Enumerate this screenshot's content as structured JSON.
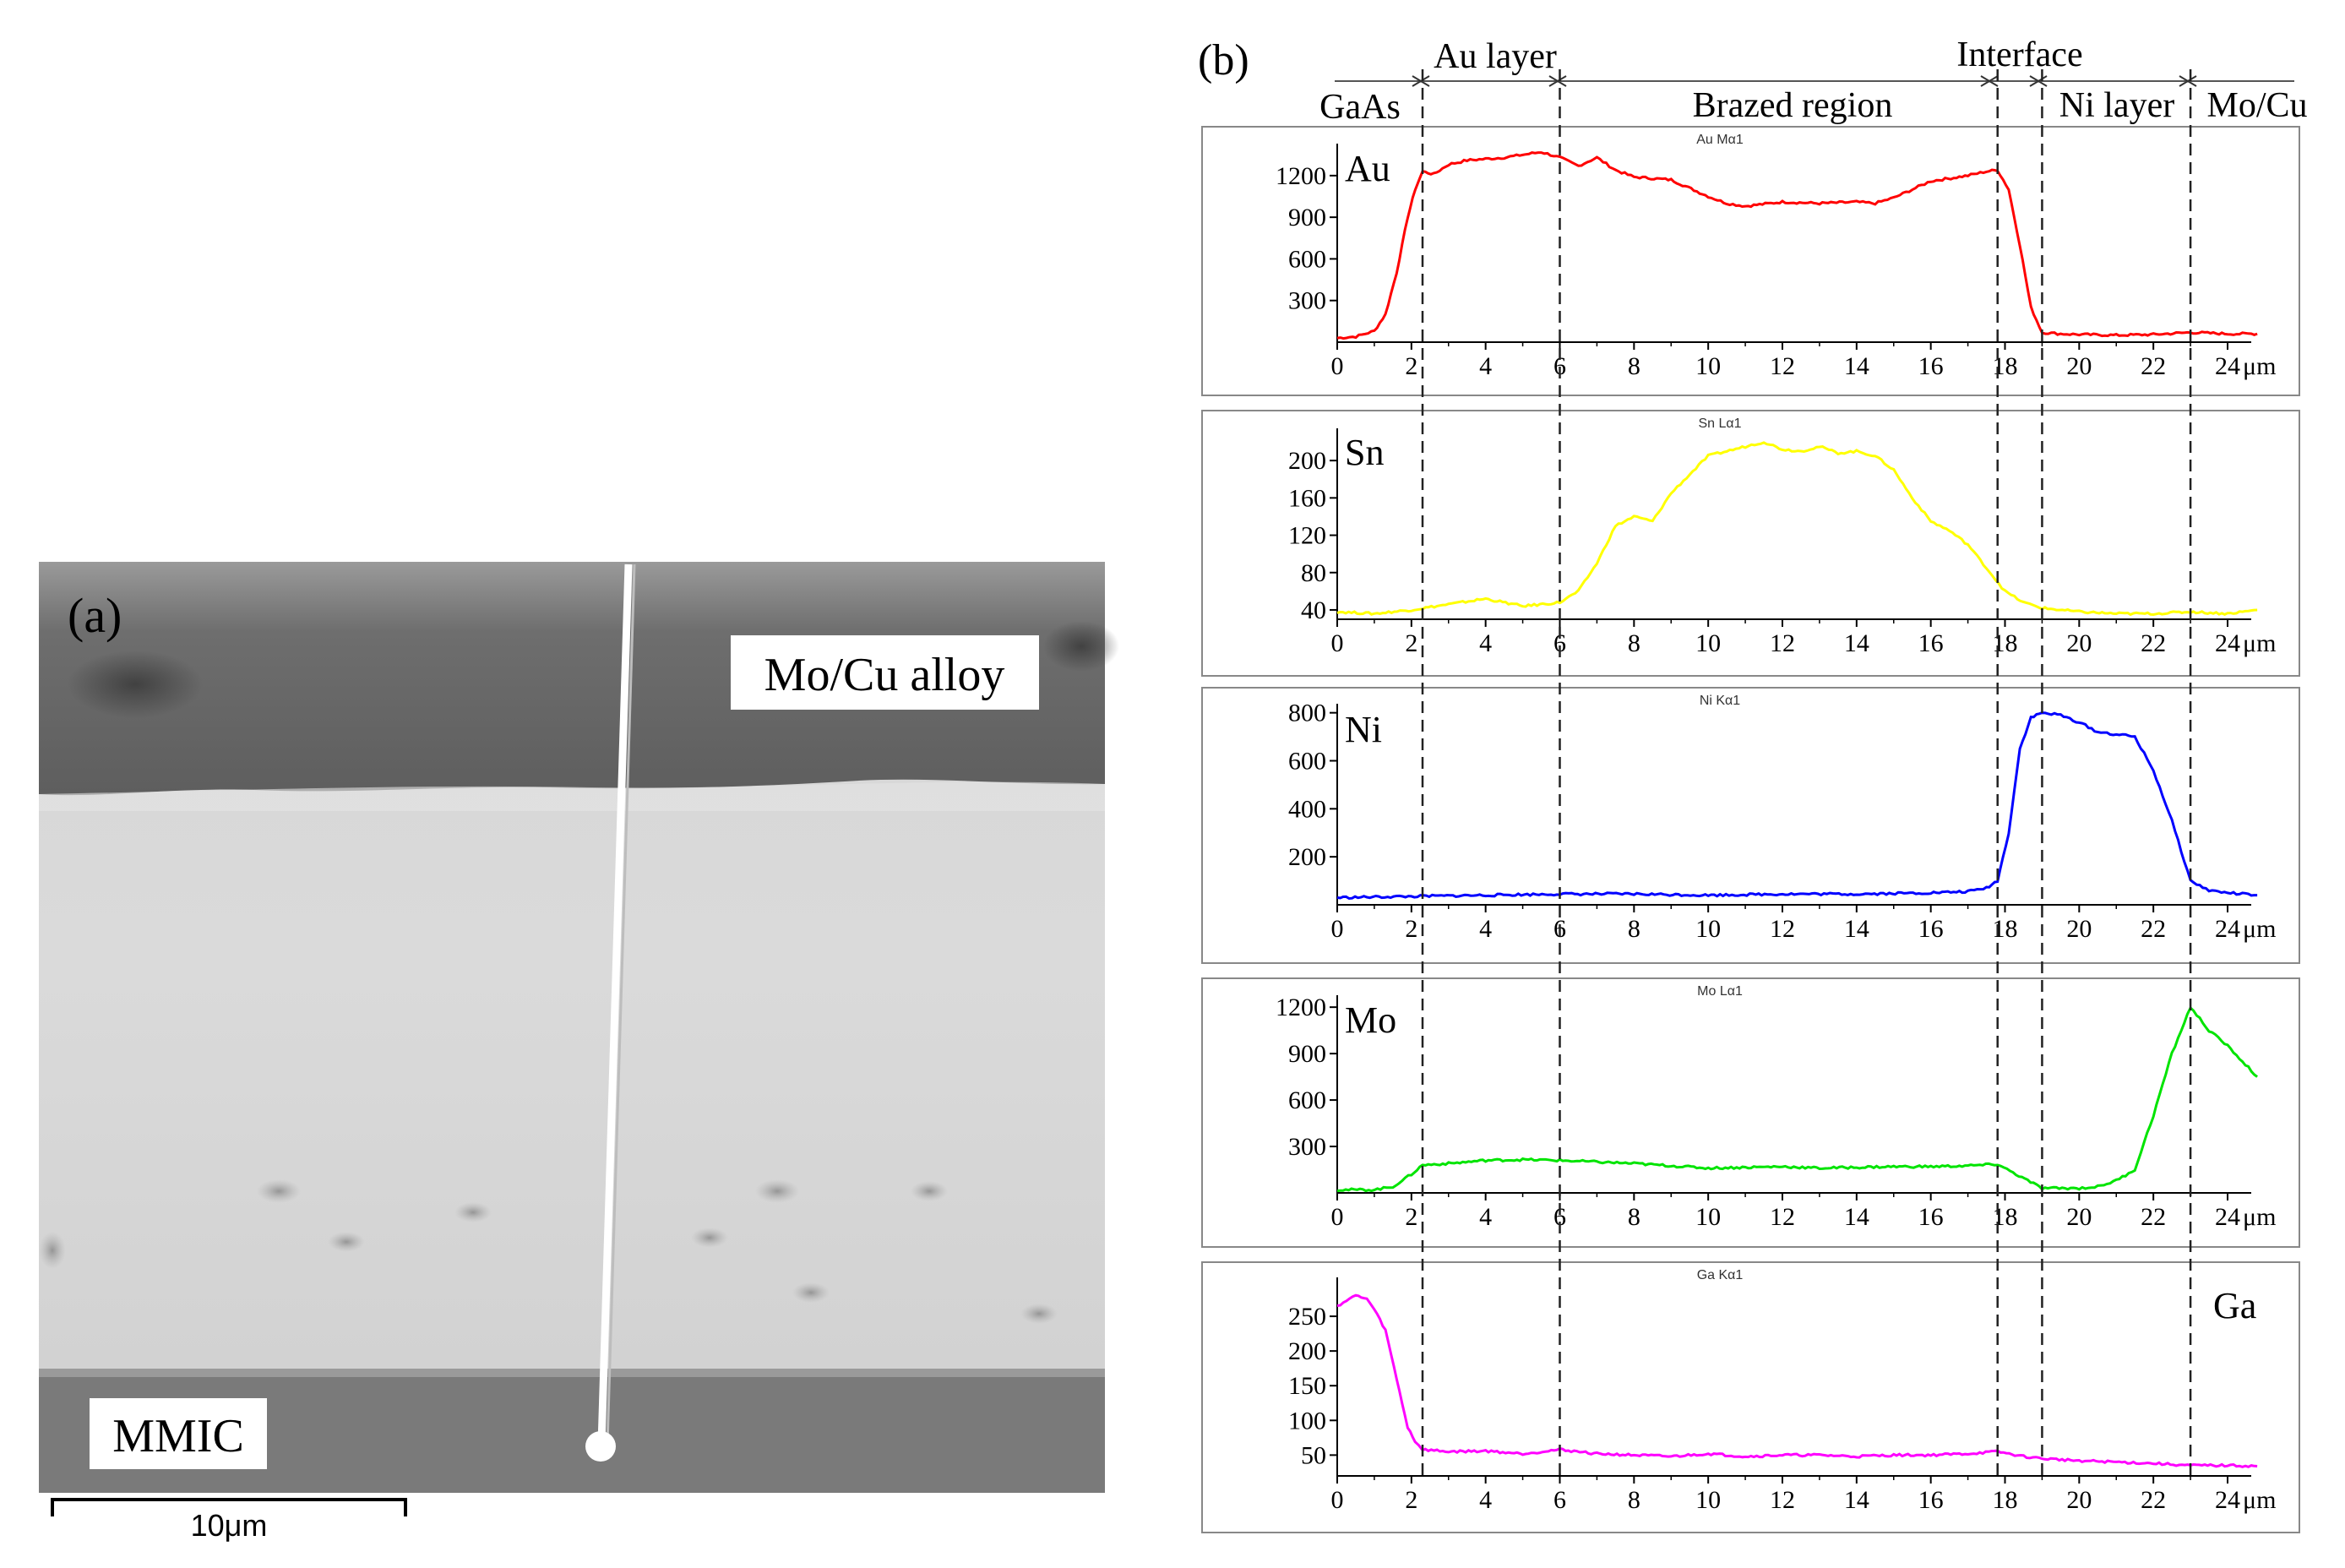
{
  "panel_a": {
    "label": "(a)",
    "mo_cu_label": "Mo/Cu alloy",
    "mmic_label": "MMIC",
    "scale_bar": "10μm"
  },
  "panel_b": {
    "label": "(b)",
    "regions": {
      "gaas": "GaAs",
      "au_layer": "Au layer",
      "brazed": "Brazed region",
      "interface": "Interface",
      "ni_layer": "Ni layer",
      "mo_cu": "Mo/Cu"
    },
    "boundaries": [
      2.3,
      6.0,
      17.8,
      19.0,
      23.0
    ],
    "x_unit": "μm"
  },
  "colors": {
    "au": "#ff0000",
    "sn": "#ffff00",
    "ni": "#0000ff",
    "mo": "#00e400",
    "ga": "#ff00ff"
  },
  "chart_data": [
    {
      "type": "line",
      "element": "Au",
      "subtitle": "Au Mα1",
      "series_name": "Au",
      "color": "#ff0000",
      "xlim": [
        0,
        24.8
      ],
      "ylim": [
        0,
        1400
      ],
      "x_ticks": [
        0,
        2,
        4,
        6,
        8,
        10,
        12,
        14,
        16,
        18,
        20,
        22,
        24
      ],
      "y_ticks": [
        300,
        600,
        900,
        1200
      ],
      "x": [
        0,
        0.5,
        1,
        1.3,
        1.6,
        1.9,
        2.1,
        2.3,
        2.6,
        3,
        3.5,
        4,
        4.5,
        5,
        5.5,
        6,
        6.5,
        7,
        7.5,
        8,
        9,
        10,
        10.5,
        11,
        12,
        13,
        14,
        14.5,
        15,
        15.5,
        16,
        17,
        17.5,
        17.8,
        18.1,
        18.4,
        18.7,
        19,
        19.5,
        20,
        21,
        22,
        23,
        24,
        24.8
      ],
      "y": [
        30,
        40,
        80,
        200,
        500,
        900,
        1100,
        1230,
        1210,
        1280,
        1310,
        1320,
        1330,
        1350,
        1370,
        1330,
        1270,
        1330,
        1240,
        1190,
        1170,
        1050,
        1000,
        980,
        1010,
        1000,
        1010,
        1000,
        1040,
        1100,
        1160,
        1200,
        1230,
        1240,
        1100,
        700,
        250,
        70,
        60,
        55,
        50,
        55,
        70,
        60,
        60
      ]
    },
    {
      "type": "line",
      "element": "Sn",
      "subtitle": "Sn Lα1",
      "series_name": "Sn",
      "color": "#ffff00",
      "xlim": [
        0,
        24.8
      ],
      "ylim": [
        30,
        230
      ],
      "x_ticks": [
        0,
        2,
        4,
        6,
        8,
        10,
        12,
        14,
        16,
        18,
        20,
        22,
        24
      ],
      "y_ticks": [
        40,
        80,
        120,
        160,
        200
      ],
      "x": [
        0,
        1,
        2,
        3,
        4,
        5,
        6,
        6.5,
        7,
        7.5,
        8,
        8.5,
        9,
        9.5,
        10,
        10.5,
        11,
        11.5,
        12,
        12.5,
        13,
        13.5,
        14,
        14.5,
        15,
        15.5,
        16,
        16.5,
        17,
        17.5,
        18,
        18.5,
        19,
        20,
        21,
        22,
        23,
        24,
        24.8
      ],
      "y": [
        38,
        36,
        40,
        46,
        52,
        44,
        48,
        60,
        90,
        130,
        140,
        135,
        165,
        185,
        205,
        210,
        215,
        220,
        212,
        210,
        215,
        208,
        210,
        205,
        190,
        160,
        135,
        125,
        110,
        85,
        60,
        48,
        42,
        38,
        36,
        36,
        38,
        36,
        40
      ]
    },
    {
      "type": "line",
      "element": "Ni",
      "subtitle": "Ni Kα1",
      "series_name": "Ni",
      "color": "#0000ff",
      "xlim": [
        0,
        24.8
      ],
      "ylim": [
        0,
        820
      ],
      "x_ticks": [
        0,
        2,
        4,
        6,
        8,
        10,
        12,
        14,
        16,
        18,
        20,
        22,
        24
      ],
      "y_ticks": [
        200,
        400,
        600,
        800
      ],
      "x": [
        0,
        2,
        4,
        6,
        8,
        10,
        12,
        14,
        16,
        17,
        17.5,
        17.8,
        18.1,
        18.4,
        18.7,
        19,
        19.5,
        20,
        20.5,
        21,
        21.5,
        22,
        22.5,
        23,
        23.5,
        24,
        24.8
      ],
      "y": [
        30,
        35,
        40,
        45,
        45,
        40,
        45,
        45,
        50,
        55,
        70,
        100,
        300,
        650,
        780,
        800,
        790,
        760,
        720,
        710,
        700,
        560,
        350,
        100,
        60,
        50,
        40
      ]
    },
    {
      "type": "line",
      "element": "Mo",
      "subtitle": "Mo Lα1",
      "series_name": "Mo",
      "color": "#00e400",
      "xlim": [
        0,
        24.8
      ],
      "ylim": [
        0,
        1250
      ],
      "x_ticks": [
        0,
        2,
        4,
        6,
        8,
        10,
        12,
        14,
        16,
        18,
        20,
        22,
        24
      ],
      "y_ticks": [
        300,
        600,
        900,
        1200
      ],
      "x": [
        0,
        1,
        1.5,
        2,
        2.3,
        3,
        4,
        5,
        6,
        7,
        8,
        9,
        10,
        11,
        12,
        13,
        14,
        15,
        16,
        17,
        17.8,
        18.3,
        19,
        20,
        20.5,
        21,
        21.5,
        22,
        22.5,
        23,
        23.5,
        24,
        24.8
      ],
      "y": [
        20,
        20,
        40,
        120,
        180,
        190,
        210,
        215,
        210,
        200,
        190,
        175,
        160,
        165,
        170,
        160,
        165,
        170,
        170,
        175,
        185,
        120,
        30,
        30,
        40,
        80,
        150,
        500,
        900,
        1200,
        1050,
        950,
        750
      ]
    },
    {
      "type": "line",
      "element": "Ga",
      "subtitle": "Ga Kα1",
      "series_name": "Ga",
      "color": "#ff00ff",
      "xlim": [
        0,
        24.8
      ],
      "ylim": [
        20,
        300
      ],
      "x_ticks": [
        0,
        2,
        4,
        6,
        8,
        10,
        12,
        14,
        16,
        18,
        20,
        22,
        24
      ],
      "y_ticks": [
        50,
        100,
        150,
        200,
        250
      ],
      "x": [
        0,
        0.5,
        0.8,
        1.0,
        1.3,
        1.6,
        1.9,
        2.1,
        2.3,
        3,
        4,
        5,
        6,
        7,
        8,
        9,
        10,
        11,
        12,
        13,
        14,
        15,
        16,
        17,
        17.8,
        18.5,
        19,
        20,
        21,
        22,
        23,
        24,
        24.8
      ],
      "y": [
        265,
        280,
        275,
        260,
        230,
        160,
        90,
        70,
        58,
        55,
        56,
        52,
        58,
        52,
        50,
        48,
        52,
        48,
        50,
        50,
        48,
        50,
        50,
        52,
        55,
        48,
        45,
        42,
        40,
        38,
        35,
        35,
        34
      ]
    }
  ]
}
